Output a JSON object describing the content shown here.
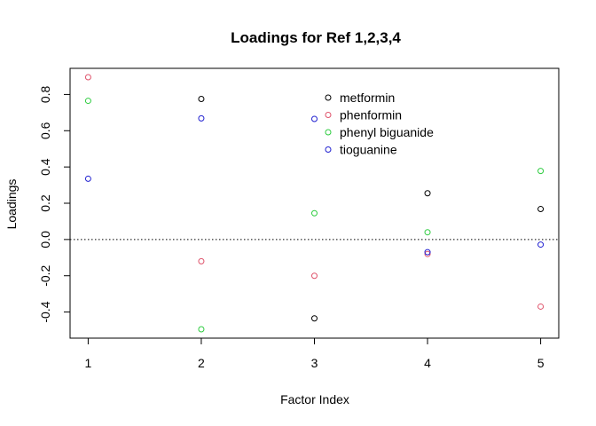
{
  "chart_data": {
    "type": "scatter",
    "title": "Loadings for Ref 1,2,3,4",
    "xlabel": "Factor Index",
    "ylabel": "Loadings",
    "x": [
      1,
      2,
      3,
      4,
      5
    ],
    "x_ticks": [
      "1",
      "2",
      "3",
      "4",
      "5"
    ],
    "y_ticks": [
      "-0.4",
      "-0.2",
      "0.0",
      "0.2",
      "0.4",
      "0.6",
      "0.8"
    ],
    "y_tick_values": [
      -0.4,
      -0.2,
      0.0,
      0.2,
      0.4,
      0.6,
      0.8
    ],
    "xlim": [
      0.84,
      5.16
    ],
    "ylim": [
      -0.544,
      0.944
    ],
    "reference_line": {
      "y": 0.0,
      "style": "dotted"
    },
    "grid": false,
    "legend_position": "top-center",
    "series": [
      {
        "name": "metformin",
        "color": "#000000",
        "values": [
          null,
          0.775,
          -0.435,
          0.255,
          0.168
        ]
      },
      {
        "name": "phenformin",
        "color": "#DF536B",
        "values": [
          0.895,
          -0.12,
          -0.2,
          -0.08,
          -0.37
        ]
      },
      {
        "name": "phenyl biguanide",
        "color": "#2ECC40",
        "values": [
          0.765,
          -0.495,
          0.145,
          0.04,
          0.378
        ]
      },
      {
        "name": "tioguanine",
        "color": "#2020D0",
        "values": [
          0.335,
          0.668,
          0.665,
          -0.07,
          -0.028
        ]
      }
    ]
  }
}
